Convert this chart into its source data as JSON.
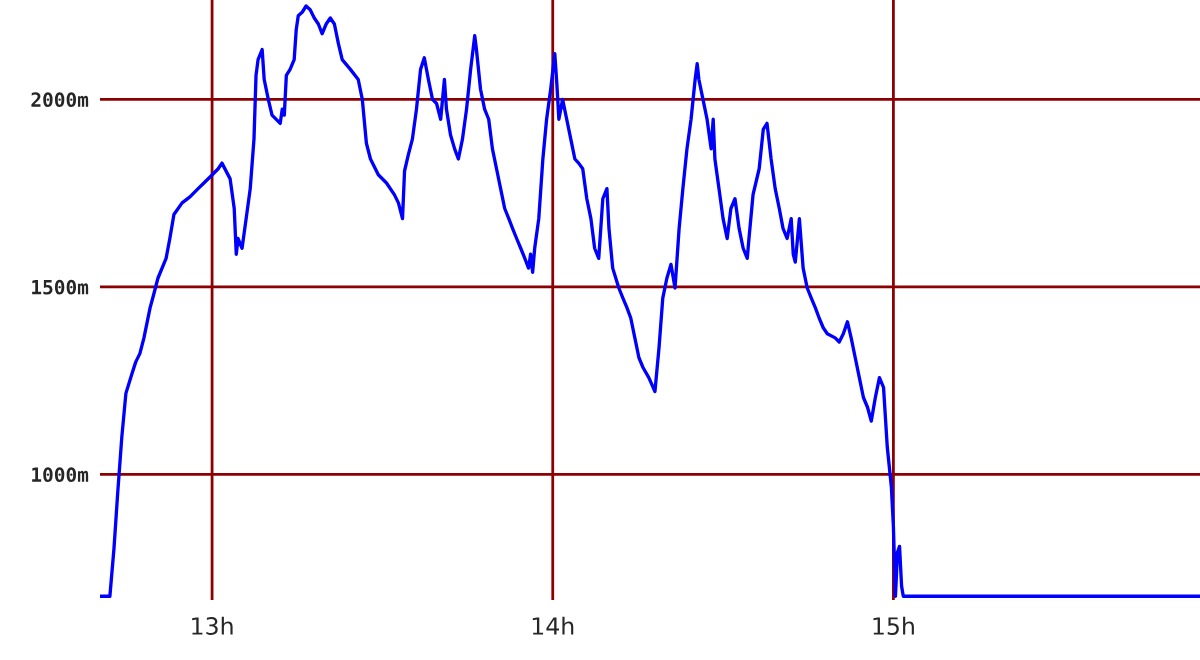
{
  "chart_data": {
    "type": "line",
    "grid": true,
    "legend": false,
    "marker": "none",
    "line_style": "solid",
    "xlim": [
      12.671,
      15.9
    ],
    "ylim": [
      665,
      2265
    ],
    "xticks": [
      {
        "value": 13,
        "label": "13h"
      },
      {
        "value": 14,
        "label": "14h"
      },
      {
        "value": 15,
        "label": "15h"
      }
    ],
    "yticks": [
      {
        "value": 1000,
        "label": "1000m"
      },
      {
        "value": 1500,
        "label": "1500m"
      },
      {
        "value": 2000,
        "label": "2000m"
      }
    ],
    "series": [
      {
        "color": "#0000ff",
        "x": [
          12.671,
          12.7,
          12.712,
          12.723,
          12.735,
          12.747,
          12.765,
          12.776,
          12.788,
          12.8,
          12.818,
          12.829,
          12.841,
          12.865,
          12.876,
          12.888,
          12.912,
          12.935,
          12.959,
          12.976,
          12.994,
          13.018,
          13.029,
          13.053,
          13.065,
          13.071,
          13.076,
          13.088,
          13.1,
          13.112,
          13.123,
          13.129,
          13.135,
          13.147,
          13.153,
          13.165,
          13.176,
          13.2,
          13.206,
          13.212,
          13.218,
          13.229,
          13.241,
          13.247,
          13.253,
          13.265,
          13.276,
          13.288,
          13.3,
          13.312,
          13.323,
          13.335,
          13.347,
          13.359,
          13.371,
          13.382,
          13.406,
          13.429,
          13.441,
          13.453,
          13.465,
          13.488,
          13.512,
          13.535,
          13.547,
          13.559,
          13.565,
          13.576,
          13.588,
          13.6,
          13.612,
          13.623,
          13.635,
          13.647,
          13.659,
          13.671,
          13.682,
          13.688,
          13.7,
          13.712,
          13.723,
          13.735,
          13.747,
          13.759,
          13.771,
          13.776,
          13.788,
          13.8,
          13.812,
          13.823,
          13.835,
          13.847,
          13.859,
          13.871,
          13.882,
          13.894,
          13.906,
          13.918,
          13.929,
          13.935,
          13.941,
          13.947,
          13.959,
          13.971,
          13.982,
          13.994,
          14.006,
          14.012,
          14.018,
          14.029,
          14.041,
          14.053,
          14.065,
          14.076,
          14.088,
          14.1,
          14.112,
          14.123,
          14.135,
          14.147,
          14.159,
          14.165,
          14.176,
          14.194,
          14.206,
          14.218,
          14.229,
          14.241,
          14.253,
          14.265,
          14.282,
          14.3,
          14.312,
          14.323,
          14.335,
          14.347,
          14.359,
          14.371,
          14.382,
          14.394,
          14.406,
          14.418,
          14.424,
          14.429,
          14.441,
          14.453,
          14.465,
          14.471,
          14.476,
          14.488,
          14.5,
          14.512,
          14.523,
          14.535,
          14.547,
          14.559,
          14.571,
          14.576,
          14.588,
          14.606,
          14.618,
          14.629,
          14.641,
          14.653,
          14.665,
          14.676,
          14.688,
          14.7,
          14.706,
          14.712,
          14.724,
          14.735,
          14.747,
          14.759,
          14.771,
          14.782,
          14.794,
          14.806,
          14.829,
          14.841,
          14.853,
          14.865,
          14.876,
          14.888,
          14.9,
          14.912,
          14.924,
          14.935,
          14.947,
          14.959,
          14.971,
          14.982,
          14.994,
          15.0,
          15.006,
          15.012,
          15.018,
          15.024,
          15.029,
          15.9
        ],
        "values": [
          675,
          675,
          802,
          951,
          1099,
          1216,
          1269,
          1300,
          1322,
          1364,
          1444,
          1481,
          1523,
          1576,
          1629,
          1693,
          1724,
          1740,
          1762,
          1777,
          1793,
          1815,
          1830,
          1788,
          1709,
          1587,
          1629,
          1603,
          1682,
          1762,
          1894,
          2064,
          2106,
          2133,
          2053,
          2000,
          1958,
          1936,
          1974,
          1958,
          2064,
          2080,
          2106,
          2186,
          2223,
          2233,
          2249,
          2239,
          2217,
          2201,
          2175,
          2201,
          2217,
          2201,
          2148,
          2106,
          2080,
          2053,
          2000,
          1883,
          1841,
          1799,
          1777,
          1746,
          1724,
          1682,
          1809,
          1852,
          1894,
          1974,
          2080,
          2111,
          2053,
          2000,
          1989,
          1947,
          2053,
          1974,
          1905,
          1868,
          1841,
          1894,
          1974,
          2080,
          2170,
          2133,
          2027,
          1974,
          1947,
          1868,
          1815,
          1762,
          1709,
          1682,
          1656,
          1629,
          1603,
          1576,
          1550,
          1587,
          1539,
          1603,
          1682,
          1841,
          1947,
          2027,
          2122,
          2042,
          1947,
          2000,
          1947,
          1894,
          1841,
          1830,
          1815,
          1735,
          1682,
          1603,
          1576,
          1735,
          1762,
          1656,
          1550,
          1497,
          1470,
          1444,
          1417,
          1364,
          1311,
          1285,
          1258,
          1221,
          1338,
          1470,
          1523,
          1560,
          1497,
          1656,
          1762,
          1868,
          1947,
          2053,
          2095,
          2053,
          2000,
          1947,
          1868,
          1947,
          1841,
          1762,
          1682,
          1629,
          1709,
          1735,
          1656,
          1603,
          1576,
          1629,
          1746,
          1815,
          1920,
          1936,
          1841,
          1762,
          1709,
          1656,
          1629,
          1682,
          1587,
          1566,
          1682,
          1550,
          1497,
          1470,
          1444,
          1417,
          1391,
          1375,
          1364,
          1353,
          1375,
          1407,
          1364,
          1311,
          1258,
          1205,
          1179,
          1142,
          1205,
          1258,
          1232,
          1073,
          967,
          861,
          675,
          792,
          808,
          702,
          675,
          675
        ]
      }
    ]
  }
}
